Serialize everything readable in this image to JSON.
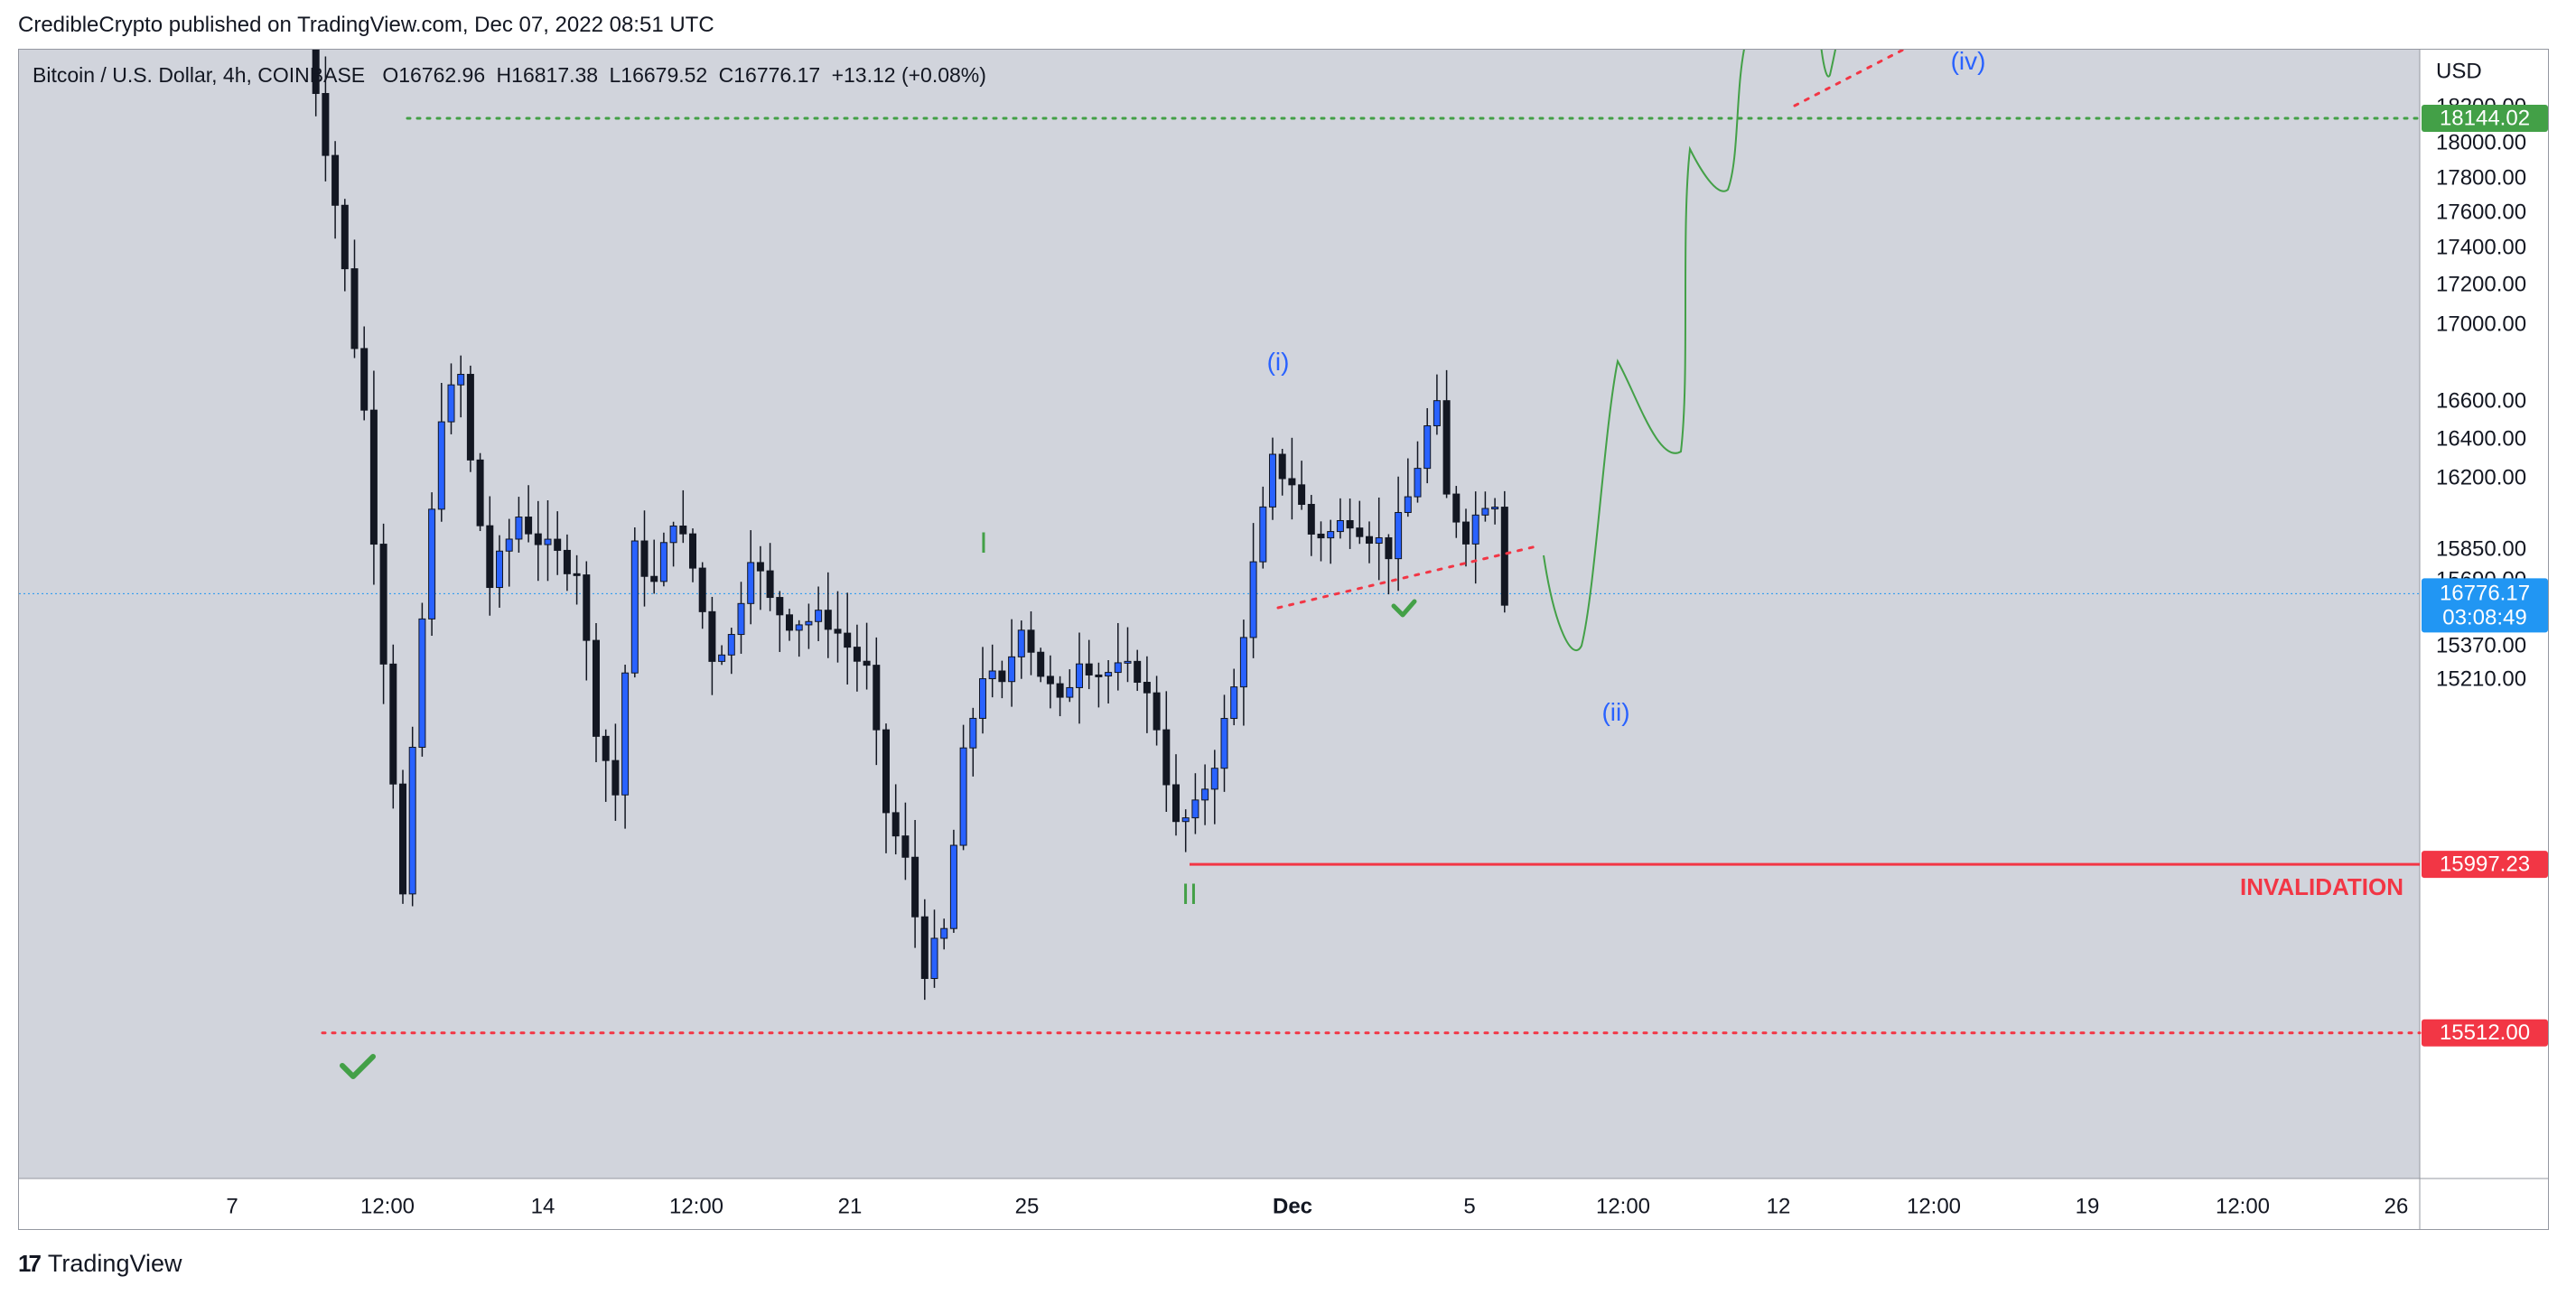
{
  "publisher": "CredibleCrypto published on TradingView.com, Dec 07, 2022 08:51 UTC",
  "legend": {
    "symbol": "Bitcoin / U.S. Dollar, 4h, COINBASE",
    "o_label": "O",
    "o_value": "16762.96",
    "h_label": "H",
    "h_value": "16817.38",
    "l_label": "L",
    "l_value": "16679.52",
    "c_label": "C",
    "c_value": "16776.17",
    "change": "+13.12 (+0.08%)"
  },
  "brand": "TradingView",
  "colors": {
    "chart_bg": "#d1d4dc",
    "candle_up": "#2962ff",
    "candle_down": "#131722",
    "green": "#43a047",
    "red": "#f23645",
    "blue_label": "#2962ff",
    "price_badge": "#2196f3"
  },
  "chart_data": {
    "type": "candlestick",
    "currency_label": "USD",
    "y_axis_ticks": [
      "18200.00",
      "18000.00",
      "17800.00",
      "17600.00",
      "17400.00",
      "17200.00",
      "17000.00",
      "16600.00",
      "16400.00",
      "16200.00",
      "15850.00",
      "15690.00",
      "15370.00",
      "15210.00"
    ],
    "x_axis_ticks": [
      "7",
      "12:00",
      "14",
      "12:00",
      "21",
      "25",
      "Dec",
      "5",
      "12:00",
      "12",
      "12:00",
      "19",
      "12:00",
      "26"
    ],
    "price_labels": [
      {
        "value": "18144.02",
        "color": "#43a047"
      },
      {
        "value": "15997.23",
        "color": "#f23645"
      },
      {
        "value": "15512.00",
        "color": "#f23645"
      }
    ],
    "current_price": {
      "value": "16776.17",
      "countdown": "03:08:49"
    },
    "levels": [
      {
        "price": 18144.02,
        "style": "dotted",
        "color": "#43a047"
      },
      {
        "price": 15997.23,
        "style": "solid",
        "color": "#f23645",
        "label": "INVALIDATION"
      },
      {
        "price": 15512.0,
        "style": "dotted",
        "color": "#f23645"
      }
    ],
    "wave_labels": [
      {
        "text": "(i)",
        "color": "#2962ff"
      },
      {
        "text": "(ii)",
        "color": "#2962ff"
      },
      {
        "text": "(iv)",
        "color": "#2962ff"
      },
      {
        "text": "I",
        "color": "#43a047"
      },
      {
        "text": "II",
        "color": "#43a047"
      }
    ],
    "candle_anchors": [
      [
        0,
        18400
      ],
      [
        3,
        17900
      ],
      [
        6,
        17300
      ],
      [
        8,
        16600
      ],
      [
        10,
        15900
      ],
      [
        11,
        16300
      ],
      [
        12,
        16700
      ],
      [
        14,
        17300
      ],
      [
        16,
        17400
      ],
      [
        17,
        17150
      ],
      [
        19,
        16800
      ],
      [
        22,
        17000
      ],
      [
        25,
        16900
      ],
      [
        28,
        16850
      ],
      [
        30,
        16400
      ],
      [
        32,
        16200
      ],
      [
        34,
        16900
      ],
      [
        36,
        16800
      ],
      [
        38,
        17000
      ],
      [
        40,
        16850
      ],
      [
        42,
        16600
      ],
      [
        44,
        16650
      ],
      [
        46,
        16900
      ],
      [
        48,
        16750
      ],
      [
        50,
        16700
      ],
      [
        54,
        16700
      ],
      [
        58,
        16550
      ],
      [
        60,
        16150
      ],
      [
        62,
        16000
      ],
      [
        64,
        15700
      ],
      [
        66,
        15800
      ],
      [
        68,
        16300
      ],
      [
        70,
        16550
      ],
      [
        72,
        16500
      ],
      [
        74,
        16700
      ],
      [
        76,
        16550
      ],
      [
        78,
        16450
      ],
      [
        80,
        16600
      ],
      [
        82,
        16550
      ],
      [
        86,
        16550
      ],
      [
        88,
        16400
      ],
      [
        90,
        16100
      ],
      [
        92,
        16150
      ],
      [
        94,
        16300
      ],
      [
        96,
        16500
      ],
      [
        98,
        16850
      ],
      [
        100,
        17150
      ],
      [
        102,
        17100
      ],
      [
        104,
        16950
      ],
      [
        106,
        16950
      ],
      [
        108,
        17000
      ],
      [
        110,
        16950
      ],
      [
        112,
        16900
      ],
      [
        114,
        17050
      ],
      [
        116,
        17250
      ],
      [
        117,
        17300
      ],
      [
        118,
        17050
      ],
      [
        120,
        16950
      ],
      [
        122,
        17050
      ],
      [
        123,
        17050
      ],
      [
        124,
        16770
      ]
    ]
  }
}
